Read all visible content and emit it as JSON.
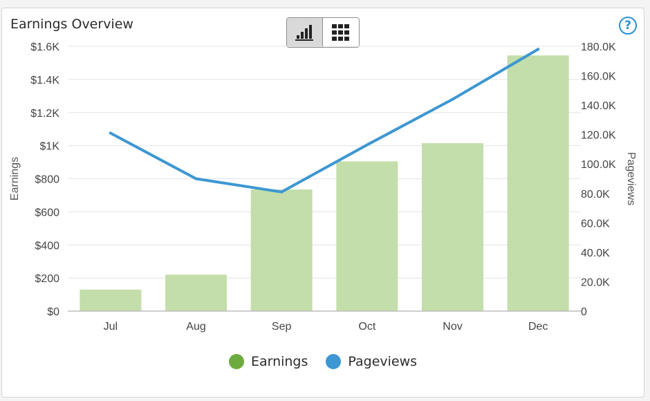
{
  "header": {
    "title": "Earnings Overview",
    "help_label": "?",
    "view_toggle": [
      {
        "icon": "bar-chart-icon",
        "active": true
      },
      {
        "icon": "grid-table-icon",
        "active": false
      }
    ]
  },
  "chart_data": {
    "type": "bar",
    "categories": [
      "Jul",
      "Aug",
      "Sep",
      "Oct",
      "Nov",
      "Dec"
    ],
    "series": [
      {
        "name": "Earnings",
        "type": "bar",
        "axis": "left",
        "color": "#c3deaa",
        "values": [
          130,
          220,
          735,
          905,
          1015,
          1545
        ]
      },
      {
        "name": "Pageviews",
        "type": "line",
        "axis": "right",
        "color": "#3d97d2",
        "values": [
          121000,
          90000,
          81000,
          113000,
          144000,
          178000
        ]
      }
    ],
    "y_left": {
      "label": "Earnings",
      "range": [
        0,
        1600
      ],
      "ticks": [
        "$0",
        "$200",
        "$400",
        "$600",
        "$800",
        "$1K",
        "$1.2K",
        "$1.4K",
        "$1.6K"
      ]
    },
    "y_right": {
      "label": "Pageviews",
      "range": [
        0,
        180000
      ],
      "ticks": [
        "0",
        "20.0K",
        "40.0K",
        "60.0K",
        "80.0K",
        "100.0K",
        "120.0K",
        "140.0K",
        "160.0K",
        "180.0K"
      ]
    },
    "grid": true,
    "legend_position": "bottom"
  },
  "legend": [
    {
      "label": "Earnings",
      "color": "#6eab3e"
    },
    {
      "label": "Pageviews",
      "color": "#3d97d2"
    }
  ]
}
